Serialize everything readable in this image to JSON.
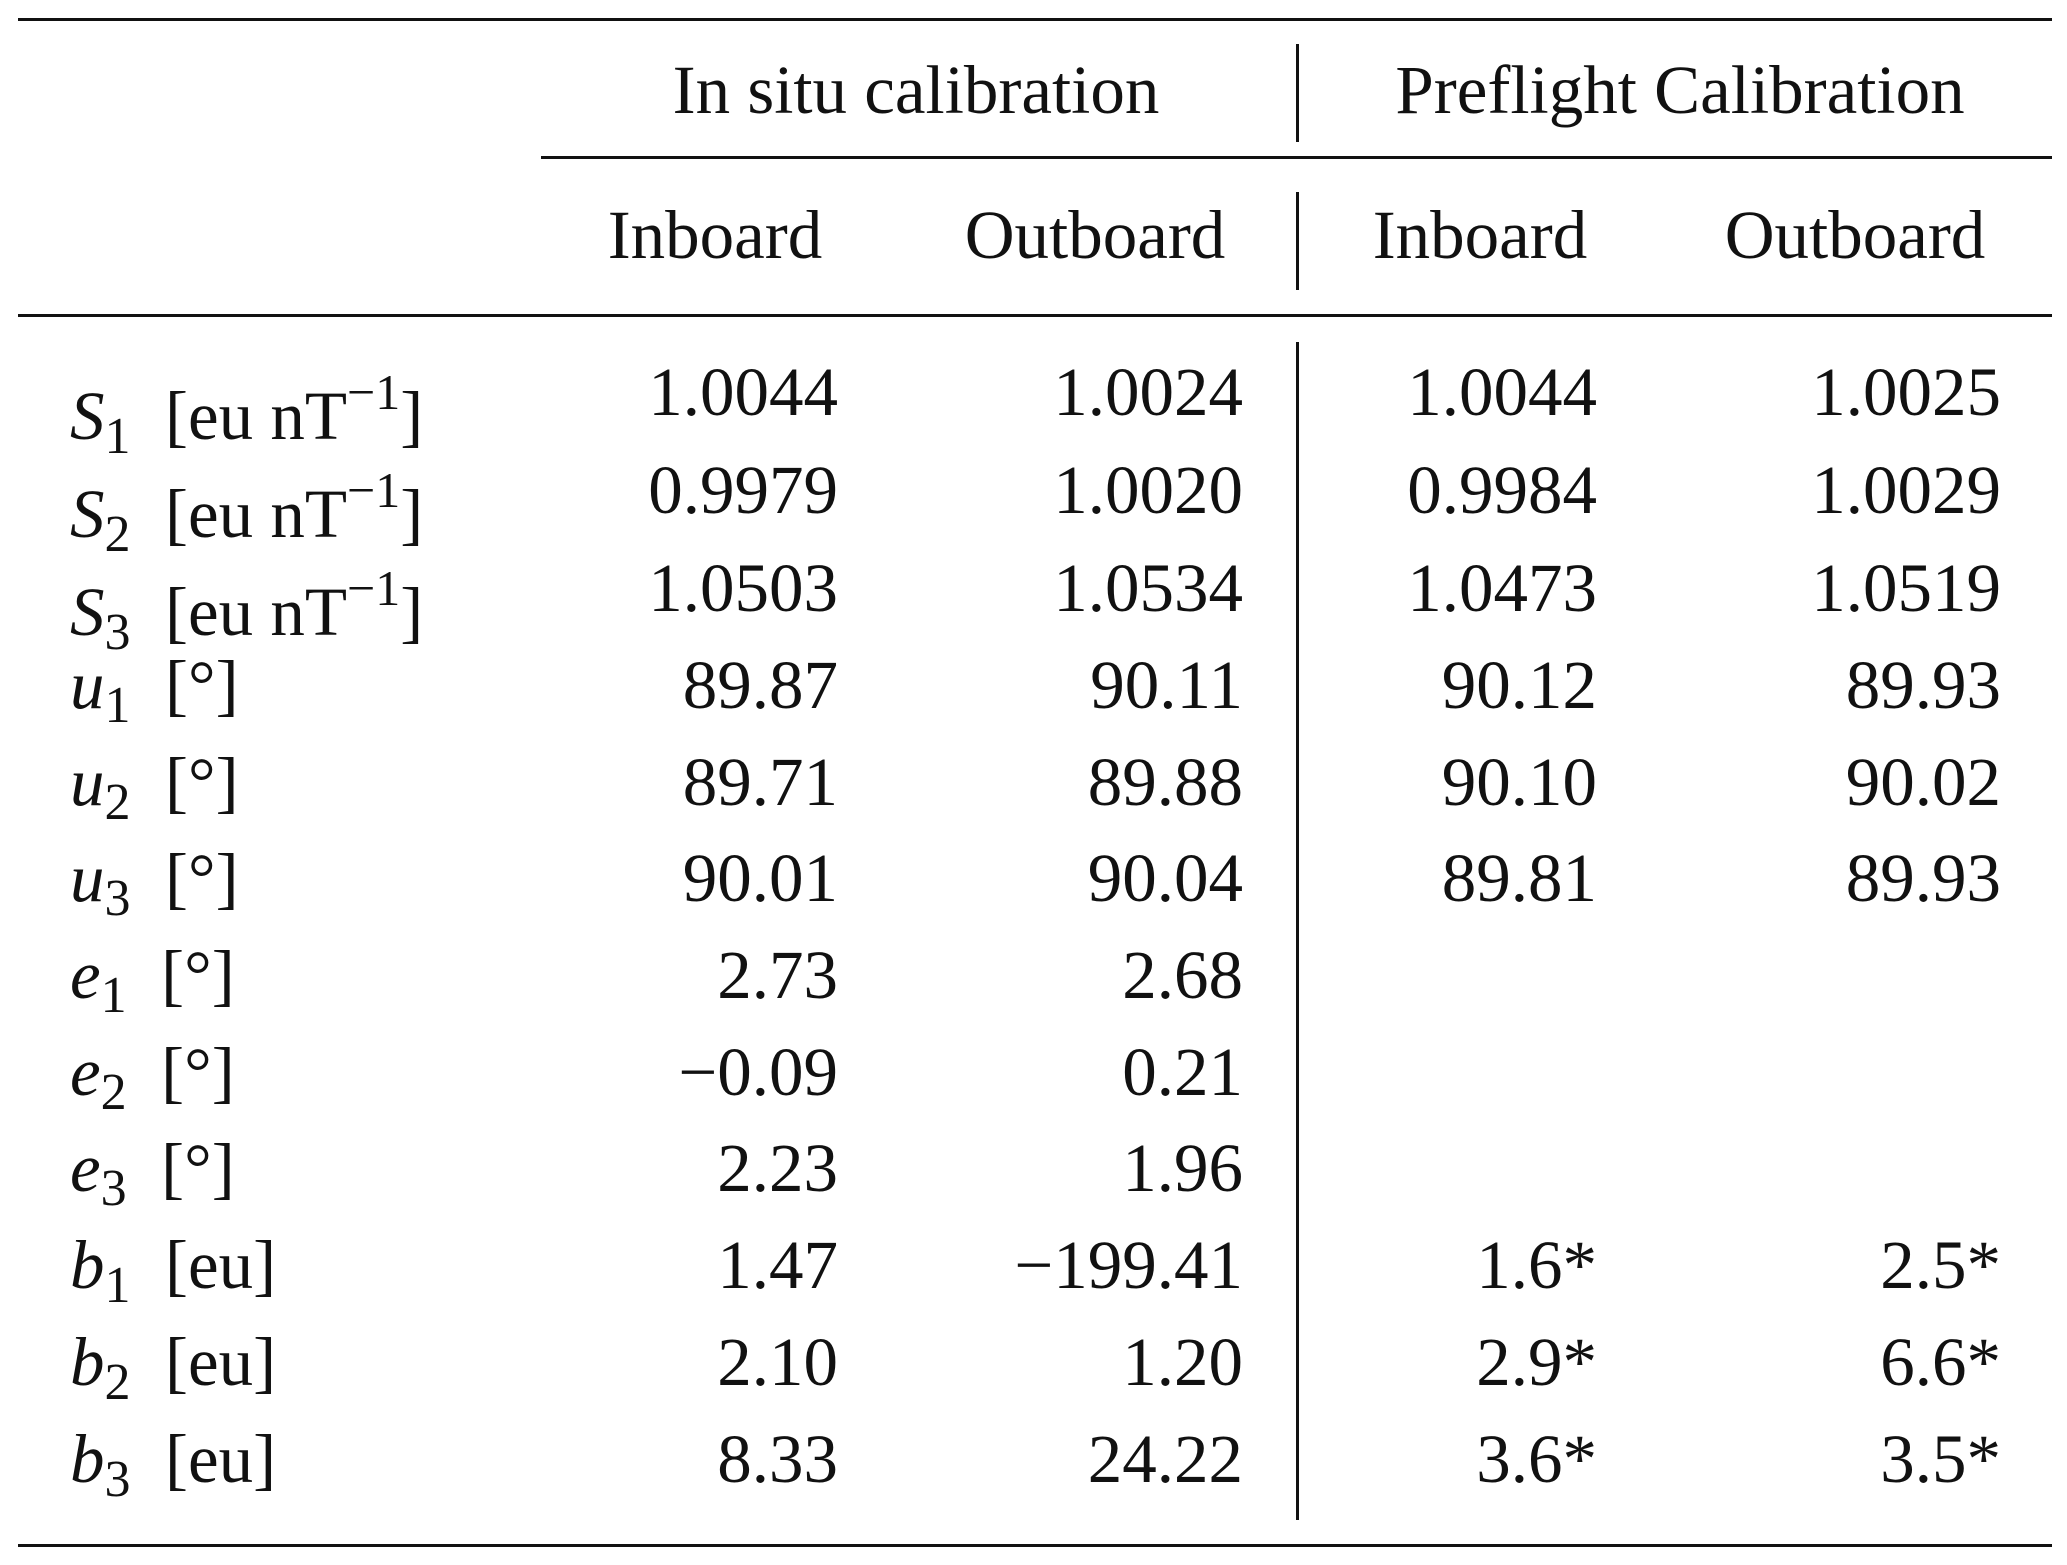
{
  "table": {
    "group_headers": {
      "in_situ": "In situ calibration",
      "preflight": "Preflight Calibration"
    },
    "columns": [
      "Inboard",
      "Outboard",
      "Inboard",
      "Outboard"
    ],
    "rows": [
      {
        "symbol": "S",
        "sub": "1",
        "unit_pre": "[eu nT",
        "unit_sup": "−1",
        "unit_post": "]",
        "values": [
          "1.0044",
          "1.0024",
          "1.0044",
          "1.0025"
        ]
      },
      {
        "symbol": "S",
        "sub": "2",
        "unit_pre": "[eu nT",
        "unit_sup": "−1",
        "unit_post": "]",
        "values": [
          "0.9979",
          "1.0020",
          "0.9984",
          "1.0029"
        ]
      },
      {
        "symbol": "S",
        "sub": "3",
        "unit_pre": "[eu nT",
        "unit_sup": "−1",
        "unit_post": "]",
        "values": [
          "1.0503",
          "1.0534",
          "1.0473",
          "1.0519"
        ]
      },
      {
        "symbol": "u",
        "sub": "1",
        "unit_pre": "[°]",
        "unit_sup": "",
        "unit_post": "",
        "values": [
          "89.87",
          "90.11",
          "90.12",
          "89.93"
        ]
      },
      {
        "symbol": "u",
        "sub": "2",
        "unit_pre": "[°]",
        "unit_sup": "",
        "unit_post": "",
        "values": [
          "89.71",
          "89.88",
          "90.10",
          "90.02"
        ]
      },
      {
        "symbol": "u",
        "sub": "3",
        "unit_pre": "[°]",
        "unit_sup": "",
        "unit_post": "",
        "values": [
          "90.01",
          "90.04",
          "89.81",
          "89.93"
        ]
      },
      {
        "symbol": "e",
        "sub": "1",
        "unit_pre": "[°]",
        "unit_sup": "",
        "unit_post": "",
        "values": [
          "2.73",
          "2.68",
          "",
          ""
        ]
      },
      {
        "symbol": "e",
        "sub": "2",
        "unit_pre": "[°]",
        "unit_sup": "",
        "unit_post": "",
        "values": [
          "−0.09",
          "0.21",
          "",
          ""
        ]
      },
      {
        "symbol": "e",
        "sub": "3",
        "unit_pre": "[°]",
        "unit_sup": "",
        "unit_post": "",
        "values": [
          "2.23",
          "1.96",
          "",
          ""
        ]
      },
      {
        "symbol": "b",
        "sub": "1",
        "unit_pre": "[eu]",
        "unit_sup": "",
        "unit_post": "",
        "values": [
          "1.47",
          "−199.41",
          "1.6*",
          "2.5*"
        ]
      },
      {
        "symbol": "b",
        "sub": "2",
        "unit_pre": "[eu]",
        "unit_sup": "",
        "unit_post": "",
        "values": [
          "2.10",
          "1.20",
          "2.9*",
          "6.6*"
        ]
      },
      {
        "symbol": "b",
        "sub": "3",
        "unit_pre": "[eu]",
        "unit_sup": "",
        "unit_post": "",
        "values": [
          "8.33",
          "24.22",
          "3.6*",
          "3.5*"
        ]
      }
    ]
  }
}
